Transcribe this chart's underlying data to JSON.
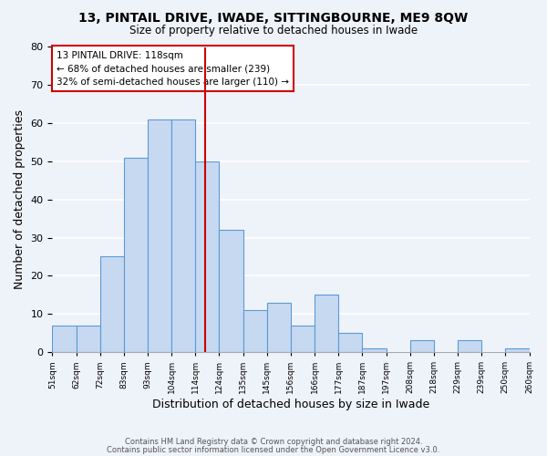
{
  "title": "13, PINTAIL DRIVE, IWADE, SITTINGBOURNE, ME9 8QW",
  "subtitle": "Size of property relative to detached houses in Iwade",
  "xlabel": "Distribution of detached houses by size in Iwade",
  "ylabel": "Number of detached properties",
  "bar_heights": [
    7,
    7,
    25,
    51,
    61,
    61,
    50,
    32,
    11,
    13,
    7,
    15,
    5,
    1,
    0,
    3,
    0,
    3,
    0,
    1
  ],
  "tick_labels": [
    "51sqm",
    "62sqm",
    "72sqm",
    "83sqm",
    "93sqm",
    "104sqm",
    "114sqm",
    "124sqm",
    "135sqm",
    "145sqm",
    "156sqm",
    "166sqm",
    "177sqm",
    "187sqm",
    "197sqm",
    "208sqm",
    "218sqm",
    "229sqm",
    "239sqm",
    "250sqm",
    "260sqm"
  ],
  "vline_bar_index": 6.636,
  "vline_color": "#cc0000",
  "bar_color": "#c6d9f1",
  "bar_edge_color": "#5b9bd5",
  "ylim": [
    0,
    80
  ],
  "yticks": [
    0,
    10,
    20,
    30,
    40,
    50,
    60,
    70,
    80
  ],
  "annotation_title": "13 PINTAIL DRIVE: 118sqm",
  "annotation_line1": "← 68% of detached houses are smaller (239)",
  "annotation_line2": "32% of semi-detached houses are larger (110) →",
  "annotation_box_color": "#ffffff",
  "annotation_box_edge": "#cc0000",
  "background_color": "#eef2f9",
  "grid_color": "#ffffff",
  "footer1": "Contains HM Land Registry data © Crown copyright and database right 2024.",
  "footer2": "Contains public sector information licensed under the Open Government Licence v3.0."
}
